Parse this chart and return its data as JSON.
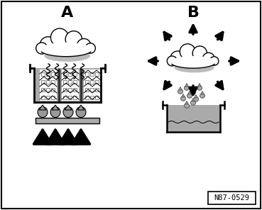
{
  "bg_color": "#ffffff",
  "label_A": "A",
  "label_B": "B",
  "caption": "N87-0529",
  "figsize": [
    3.69,
    2.96
  ],
  "dpi": 100,
  "cloud_fill": "#ffffff",
  "cloud_shadow": "#cccccc",
  "gray_fill": "#aaaaaa",
  "dark_gray": "#888888",
  "beaker_gray": "#bbbbbb"
}
